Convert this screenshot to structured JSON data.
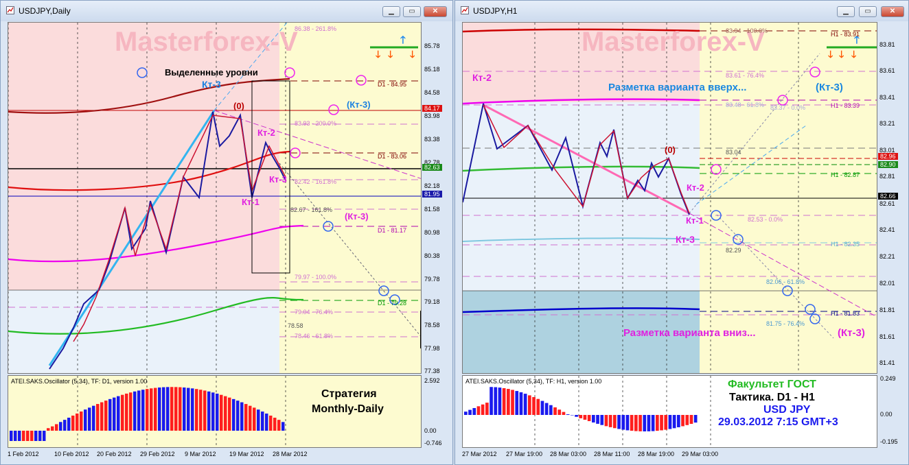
{
  "left": {
    "title": "USDJPY,Daily",
    "watermark": "Masterforex-V",
    "price_ticks": [
      "85.78",
      "85.18",
      "84.58",
      "83.98",
      "83.38",
      "82.78",
      "82.18",
      "81.58",
      "80.98",
      "80.38",
      "79.78",
      "79.18",
      "78.58",
      "77.98",
      "77.38"
    ],
    "price_tags": {
      "red": "84.17",
      "green": "82.63",
      "blue": "81.95"
    },
    "fib_labels": [
      "86.38 - 261.8%",
      "83.93 - 200.0%",
      "82.42 - 161.8%",
      "82.67 - 161.8%",
      "79.97 - 100.0%",
      "79.04 - 76.4%",
      "78.58",
      "78.46 - 61.8%"
    ],
    "level_labels": {
      "d1_a": "D1 - 84.95",
      "d1_b": "D1 - 83.06",
      "d1_c": "D1 - 81.17",
      "d1_d": "D1 - 79.28"
    },
    "annotations": {
      "highlight": "Выделенные уровни",
      "kt3_a": "Кт-3",
      "kt3_b": "(Кт-3)",
      "kt3_c": "(Кт-3)",
      "kt3_d": "Кт-3",
      "kt2": "Кт-2",
      "kt1": "Кт-1",
      "zero": "(0)"
    },
    "osc_label": "ATEI.SAKS.Oscillator (5,34), TF: D1, version 1.00",
    "osc_ticks": [
      "2.592",
      "0.00",
      "-0.746"
    ],
    "strategy_1": "Стратегия",
    "strategy_2": "Monthly-Daily",
    "date_ticks": [
      "1 Feb 2012",
      "10 Feb 2012",
      "20 Feb 2012",
      "29 Feb 2012",
      "9 Mar 2012",
      "19 Mar 2012",
      "28 Mar 2012"
    ]
  },
  "right": {
    "title": "USDJPY,H1",
    "watermark": "Masterforex-V",
    "price_ticks": [
      "83.81",
      "83.61",
      "83.41",
      "83.21",
      "83.01",
      "82.81",
      "82.61",
      "82.41",
      "82.21",
      "82.01",
      "81.81",
      "81.61",
      "81.41"
    ],
    "price_tags": {
      "red": "82.96",
      "green": "82.90",
      "black": "82.66"
    },
    "fib_labels": [
      "83.94 - 100.0%",
      "83.61 - 76.4%",
      "83.48 - 61.8%",
      "83.37 - 0.0%",
      "83.04",
      "82.53 - 0.0%",
      "82.29",
      "82.06 - 61.8%",
      "81.75 - 76.4%"
    ],
    "level_labels": {
      "h1_a": "H1 - 83.91",
      "h1_b": "H1 - 83.39",
      "h1_c": "H1 - 82.87",
      "h1_d": "H1 - 82.35",
      "h1_e": "H1 - 81.83"
    },
    "annotations": {
      "kt2_a": "Кт-2",
      "up": "Разметка варианта вверх...",
      "kt3_a": "(Кт-3)",
      "zero": "(0)",
      "kt2_b": "Кт-2",
      "kt1": "Кт-1",
      "kt3_b": "Кт-3",
      "down": "Разметка варианта вниз...",
      "kt3_c": "(Кт-3)"
    },
    "osc_label": "ATEI.SAKS.Oscillator (5,34), TF: H1, version 1.00",
    "osc_ticks": [
      "0.249",
      "0.00",
      "-0.195"
    ],
    "info_1a": "Факультет",
    "info_1b": "ГОСТ",
    "info_2": "Тактика. D1 - H1",
    "info_3": "USD JPY",
    "info_4": "29.03.2012 7:15 GMT+3",
    "date_ticks": [
      "27 Mar 2012",
      "27 Mar 19:00",
      "28 Mar 03:00",
      "28 Mar 11:00",
      "28 Mar 19:00",
      "29 Mar 03:00"
    ]
  },
  "colors": {
    "pink_zone": "#fbdcdc",
    "blue_zone": "#eaf2fa",
    "yellow_zone": "#fdfbd0",
    "bars_red": "#ff1e1e",
    "bars_blue": "#1a1aee"
  }
}
